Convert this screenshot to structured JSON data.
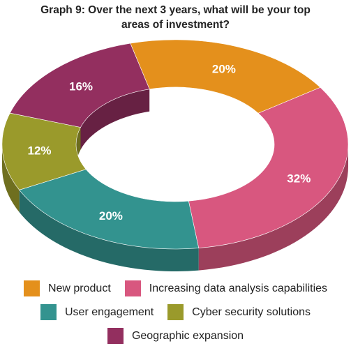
{
  "chart_data": {
    "type": "pie",
    "variant": "3d-donut",
    "title": "Graph 9: Over the next 3 years, what will be your top\nareas of investment?",
    "categories": [
      "New product",
      "Increasing data analysis capabilities",
      "User engagement",
      "Cyber security solutions",
      "Geographic expansion"
    ],
    "values": [
      20,
      32,
      20,
      12,
      16
    ],
    "data_labels": [
      "20%",
      "32%",
      "20%",
      "12%",
      "16%"
    ],
    "colors": [
      "#e4901c",
      "#d8577f",
      "#33938f",
      "#9a9a2b",
      "#932f5f"
    ],
    "legend_position": "bottom"
  }
}
